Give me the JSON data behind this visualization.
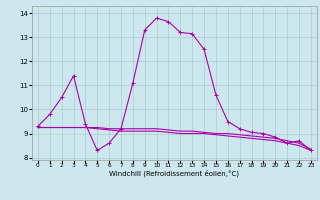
{
  "xlabel": "Windchill (Refroidissement éolien,°C)",
  "bg_color": "#cce8ee",
  "grid_color": "#aacccc",
  "line_color": "#aa00aa",
  "x_values": [
    0,
    1,
    2,
    3,
    4,
    5,
    6,
    7,
    8,
    9,
    10,
    11,
    12,
    13,
    14,
    15,
    16,
    17,
    18,
    19,
    20,
    21,
    22,
    23
  ],
  "curve1": [
    9.3,
    9.8,
    10.5,
    11.4,
    9.4,
    8.3,
    8.6,
    9.2,
    11.1,
    13.3,
    13.8,
    13.65,
    13.2,
    13.15,
    12.5,
    10.6,
    9.5,
    9.2,
    9.05,
    9.0,
    8.85,
    8.6,
    8.7,
    8.3
  ],
  "curve2": [
    9.25,
    9.25,
    9.25,
    9.25,
    9.25,
    9.25,
    9.2,
    9.2,
    9.2,
    9.2,
    9.2,
    9.15,
    9.1,
    9.1,
    9.05,
    9.0,
    9.0,
    8.95,
    8.9,
    8.85,
    8.8,
    8.7,
    8.6,
    8.35
  ],
  "curve3": [
    9.25,
    9.25,
    9.25,
    9.25,
    9.25,
    9.2,
    9.15,
    9.1,
    9.1,
    9.1,
    9.1,
    9.05,
    9.0,
    9.0,
    9.0,
    8.95,
    8.9,
    8.85,
    8.8,
    8.75,
    8.7,
    8.6,
    8.5,
    8.3
  ],
  "ylim": [
    7.9,
    14.3
  ],
  "yticks": [
    8,
    9,
    10,
    11,
    12,
    13,
    14
  ],
  "xticks": [
    0,
    1,
    2,
    3,
    4,
    5,
    6,
    7,
    8,
    9,
    10,
    11,
    12,
    13,
    14,
    15,
    16,
    17,
    18,
    19,
    20,
    21,
    22,
    23
  ],
  "figsize": [
    3.2,
    2.0
  ],
  "dpi": 100
}
